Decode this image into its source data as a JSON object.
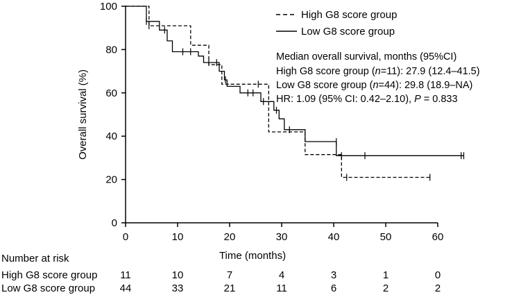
{
  "chart_data": {
    "type": "line",
    "subtype": "kaplan-meier",
    "xlabel": "Time (months)",
    "ylabel": "Overall survival (%)",
    "xlim": [
      0,
      65
    ],
    "ylim": [
      0,
      100
    ],
    "x_ticks": [
      0,
      10,
      20,
      30,
      40,
      50,
      60
    ],
    "y_ticks": [
      0,
      20,
      40,
      60,
      80,
      100
    ],
    "grid": false,
    "legend_position": "top-right",
    "series": [
      {
        "name": "High G8 score group",
        "style": "dashed",
        "steps": [
          [
            0,
            100
          ],
          [
            4.5,
            100
          ],
          [
            4.5,
            91
          ],
          [
            12.5,
            91
          ],
          [
            12.5,
            82
          ],
          [
            16,
            82
          ],
          [
            16,
            73
          ],
          [
            18.5,
            73
          ],
          [
            18.5,
            64
          ],
          [
            27.5,
            64
          ],
          [
            27.5,
            42
          ],
          [
            34.5,
            42
          ],
          [
            34.5,
            31.5
          ],
          [
            41.5,
            31.5
          ],
          [
            41.5,
            21
          ],
          [
            58.5,
            21
          ]
        ],
        "censors": [
          [
            4.5,
            91
          ],
          [
            25.5,
            64
          ],
          [
            42.5,
            21
          ],
          [
            58.5,
            21
          ]
        ]
      },
      {
        "name": "Low G8 score group",
        "style": "solid",
        "steps": [
          [
            0,
            100
          ],
          [
            4,
            100
          ],
          [
            4,
            93
          ],
          [
            6.5,
            93
          ],
          [
            6.5,
            89
          ],
          [
            8,
            89
          ],
          [
            8,
            84
          ],
          [
            9,
            84
          ],
          [
            9,
            79
          ],
          [
            14,
            79
          ],
          [
            14,
            77
          ],
          [
            15,
            77
          ],
          [
            15,
            74
          ],
          [
            18,
            74
          ],
          [
            18,
            70
          ],
          [
            19,
            70
          ],
          [
            19,
            66
          ],
          [
            19.5,
            66
          ],
          [
            19.5,
            63
          ],
          [
            22,
            63
          ],
          [
            22,
            60
          ],
          [
            26,
            60
          ],
          [
            26,
            56
          ],
          [
            28.5,
            56
          ],
          [
            28.5,
            52
          ],
          [
            29.5,
            52
          ],
          [
            29.5,
            48
          ],
          [
            30.5,
            48
          ],
          [
            30.5,
            43
          ],
          [
            34.5,
            43
          ],
          [
            34.5,
            37.5
          ],
          [
            40.5,
            37.5
          ],
          [
            40.5,
            31
          ],
          [
            65,
            31
          ]
        ],
        "censors": [
          [
            4,
            93
          ],
          [
            7.5,
            89
          ],
          [
            11,
            79
          ],
          [
            12.5,
            79
          ],
          [
            16,
            74
          ],
          [
            17.5,
            74
          ],
          [
            19.2,
            66
          ],
          [
            23.5,
            60
          ],
          [
            24.5,
            60
          ],
          [
            26.5,
            56
          ],
          [
            29,
            52
          ],
          [
            31.5,
            43
          ],
          [
            40.5,
            37.5
          ],
          [
            41.5,
            31
          ],
          [
            46,
            31
          ],
          [
            64.5,
            31
          ],
          [
            65,
            31
          ]
        ]
      }
    ],
    "annotation": {
      "header": "Median overall survival, months (95%CI)",
      "high_prefix": "High G8 score group (",
      "high_n": "n",
      "high_suffix": "=11): 27.9 (12.4–41.5)",
      "low_prefix": "Low G8 score group (",
      "low_n": "n",
      "low_suffix": "=44): 29.8 (18.9–NA)",
      "hr_prefix": "HR: 1.09 (95% CI: 0.42–2.10), ",
      "hr_p": "P",
      "hr_suffix": " = 0.833"
    },
    "risk_table": {
      "title": "Number at risk",
      "times": [
        0,
        10,
        20,
        30,
        40,
        50,
        60
      ],
      "rows": [
        {
          "label": "High G8 score group",
          "values": [
            "11",
            "10",
            "7",
            "4",
            "3",
            "1",
            "0"
          ]
        },
        {
          "label": "Low G8 score group",
          "values": [
            "44",
            "33",
            "21",
            "11",
            "6",
            "2",
            "2"
          ]
        }
      ]
    }
  }
}
